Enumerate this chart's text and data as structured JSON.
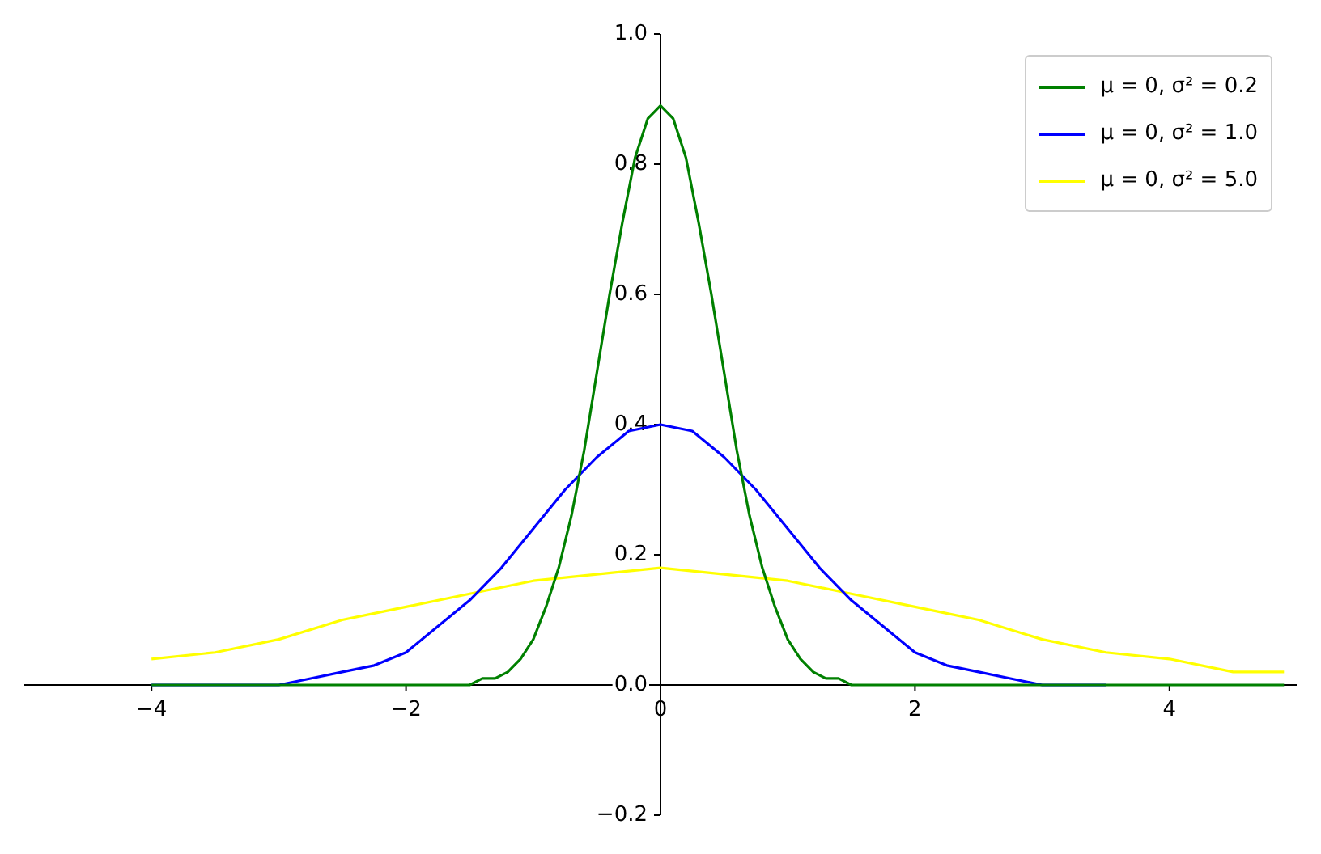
{
  "chart_data": {
    "type": "line",
    "series": [
      {
        "name": "μ = 0, σ² = 0.2",
        "color": "#008000",
        "x": [
          -4,
          -1.6,
          -1.5,
          -1.4,
          -1.3,
          -1.2,
          -1.1,
          -1.0,
          -0.9,
          -0.8,
          -0.7,
          -0.6,
          -0.5,
          -0.4,
          -0.3,
          -0.2,
          -0.1,
          0,
          0.1,
          0.2,
          0.3,
          0.4,
          0.5,
          0.6,
          0.7,
          0.8,
          0.9,
          1.0,
          1.1,
          1.2,
          1.3,
          1.4,
          1.5,
          1.6,
          4.9
        ],
        "values": [
          0,
          0,
          0,
          0.01,
          0.01,
          0.02,
          0.04,
          0.07,
          0.12,
          0.18,
          0.26,
          0.36,
          0.48,
          0.6,
          0.71,
          0.81,
          0.87,
          0.89,
          0.87,
          0.81,
          0.71,
          0.6,
          0.48,
          0.36,
          0.26,
          0.18,
          0.12,
          0.07,
          0.04,
          0.02,
          0.01,
          0.01,
          0,
          0,
          0
        ]
      },
      {
        "name": "μ = 0, σ² = 1.0",
        "color": "#0000ff",
        "x": [
          -4,
          -3.5,
          -3,
          -2.75,
          -2.5,
          -2.25,
          -2,
          -1.75,
          -1.5,
          -1.25,
          -1,
          -0.75,
          -0.5,
          -0.25,
          0,
          0.25,
          0.5,
          0.75,
          1,
          1.25,
          1.5,
          1.75,
          2,
          2.25,
          2.5,
          2.75,
          3,
          3.5
        ],
        "values": [
          0,
          0,
          0,
          0.01,
          0.02,
          0.03,
          0.05,
          0.09,
          0.13,
          0.18,
          0.24,
          0.3,
          0.35,
          0.39,
          0.4,
          0.39,
          0.35,
          0.3,
          0.24,
          0.18,
          0.13,
          0.09,
          0.05,
          0.03,
          0.02,
          0.01,
          0,
          0
        ]
      },
      {
        "name": "μ = 0, σ² = 5.0",
        "color": "#ffff00",
        "x": [
          -4,
          -3.5,
          -3,
          -2.5,
          -2,
          -1.5,
          -1,
          -0.5,
          0,
          0.5,
          1,
          1.5,
          2,
          2.5,
          3,
          3.5,
          4,
          4.5,
          4.9
        ],
        "values": [
          0.04,
          0.05,
          0.07,
          0.1,
          0.12,
          0.14,
          0.16,
          0.17,
          0.18,
          0.17,
          0.16,
          0.14,
          0.12,
          0.1,
          0.07,
          0.05,
          0.04,
          0.02,
          0.02
        ]
      }
    ],
    "xlim": [
      -5,
      5
    ],
    "xticks": [
      {
        "value": -4,
        "label": "−4"
      },
      {
        "value": -2,
        "label": "−2"
      },
      0,
      2,
      4
    ],
    "ylim": [
      -0.2,
      1.0
    ],
    "yticks": [
      {
        "value": -0.2,
        "label": "−0.2"
      },
      {
        "value": 0,
        "label": "0.0"
      },
      0.2,
      0.4,
      0.6,
      0.8,
      {
        "value": 1,
        "label": "1.0"
      }
    ],
    "grid": false,
    "legend": "top right",
    "line_style": "solid",
    "marker": "none"
  }
}
